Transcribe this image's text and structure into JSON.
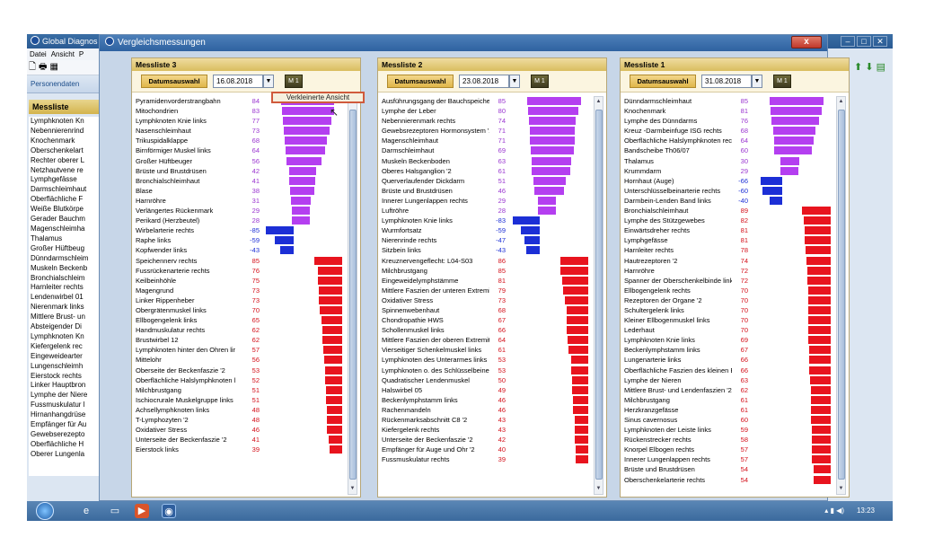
{
  "bg_app": {
    "title": "Global Diagnos",
    "menu": [
      "Datei",
      "Ansicht",
      "P"
    ],
    "personendaten": "Personendaten",
    "messliste": "Messliste",
    "list": [
      "Lymphknoten Kn",
      "Nebennierenrind",
      "Knochenmark",
      "Oberschenkelart",
      "Rechter oberer L",
      "Netzhautvene re",
      "Lymphgefässe",
      "Darmschleimhaut",
      "Oberflächliche F",
      "Weiße Blutkörpe",
      "Gerader Bauchm",
      "Magenschleimha",
      "Thalamus",
      "Großer Hüftbeug",
      "Dünndarmschleim",
      "Muskeln Beckenb",
      "Bronchialschleim",
      "Harnleiter rechts",
      "Lendenwirbel 01",
      "Nierenmark links",
      "Mittlere Brust- un",
      "Absteigender Di",
      "Lymphknoten Kn",
      "Kiefergelenk rec",
      "Eingeweidearter",
      "Lungenschleimh",
      "Eierstock rechts",
      "Linker Hauptbron",
      "Lymphe der Niere",
      "Fussmuskulatur l",
      "Hirnanhangdrüse",
      "Empfänger für Au",
      "Gewebserezepto",
      "Oberflächliche H",
      "Oberer Lungenla"
    ]
  },
  "dialog": {
    "title": "Vergleichsmessungen",
    "close": "x",
    "verkleinerte": "Verkleinerte Ansicht"
  },
  "colors": {
    "purple": "#b43ff0",
    "blue": "#1c2fd6",
    "red": "#e8141e"
  },
  "panels": [
    {
      "title": "Messliste 3",
      "date_label": "Datumsauswahl",
      "date": "16.08.2018",
      "m": "M 1",
      "rows": [
        [
          "Pyramidenvorderstrangbahn",
          84,
          "purple"
        ],
        [
          "Mitochondrien",
          83,
          "purple"
        ],
        [
          "Lymphknoten Knie links",
          77,
          "purple"
        ],
        [
          "Nasenschleimhaut",
          73,
          "purple"
        ],
        [
          "Trikuspidalklappe",
          68,
          "purple"
        ],
        [
          "Birnförmiger Muskel links",
          64,
          "purple"
        ],
        [
          "Großer Hüftbeuger",
          56,
          "purple"
        ],
        [
          "Brüste und Brustdrüsen",
          42,
          "purple"
        ],
        [
          "Bronchialschleimhaut",
          41,
          "purple"
        ],
        [
          "Blase",
          38,
          "purple"
        ],
        [
          "Harnröhre",
          31,
          "purple"
        ],
        [
          "Verlängertes Rückenmark",
          29,
          "purple"
        ],
        [
          "Perikard (Herzbeutel)",
          28,
          "purple"
        ],
        [
          "Wirbelarterie rechts",
          -85,
          "blue"
        ],
        [
          "Raphe links",
          -59,
          "blue"
        ],
        [
          "Kopfwender links",
          -43,
          "blue"
        ],
        [
          "Speichennerv rechts",
          85,
          "red"
        ],
        [
          "Fussrückenarterie rechts",
          76,
          "red"
        ],
        [
          "Keilbeinhöhle",
          75,
          "red"
        ],
        [
          "Magengrund",
          73,
          "red"
        ],
        [
          "Linker Rippenheber",
          73,
          "red"
        ],
        [
          "Obergrätenmuskel links",
          70,
          "red"
        ],
        [
          "Ellbogengelenk links",
          65,
          "red"
        ],
        [
          "Handmuskulatur rechts",
          62,
          "red"
        ],
        [
          "Brustwirbel 12",
          62,
          "red"
        ],
        [
          "Lymphknoten hinter den Ohren lir",
          57,
          "red"
        ],
        [
          "Mittelohr",
          56,
          "red"
        ],
        [
          "Oberseite der Beckenfaszie '2",
          53,
          "red"
        ],
        [
          "Oberflächliche Halslymphknoten l",
          52,
          "red"
        ],
        [
          "Milchbrustgang",
          51,
          "red"
        ],
        [
          "Ischiocrurale Muskelgruppe links",
          51,
          "red"
        ],
        [
          "Achsellymphknoten links",
          48,
          "red"
        ],
        [
          "T-Lymphozyten '2",
          48,
          "red"
        ],
        [
          "Oxidativer Stress",
          46,
          "red"
        ],
        [
          "Unterseite der Beckenfaszie '2",
          41,
          "red"
        ],
        [
          "Eierstock links",
          39,
          "red"
        ]
      ]
    },
    {
      "title": "Messliste 2",
      "date_label": "Datumsauswahl",
      "date": "23.08.2018",
      "m": "M 1",
      "rows": [
        [
          "Ausführungsgang der Bauchspeicheldr",
          85,
          "purple"
        ],
        [
          "Lymphe der Leber",
          80,
          "purple"
        ],
        [
          "Nebennierenmark rechts",
          74,
          "purple"
        ],
        [
          "Gewebsrezeptoren Hormonsystem '2",
          71,
          "purple"
        ],
        [
          "Magenschleimhaut",
          71,
          "purple"
        ],
        [
          "Darmschleimhaut",
          69,
          "purple"
        ],
        [
          "Muskeln Beckenboden",
          63,
          "purple"
        ],
        [
          "Oberes Halsganglion '2",
          61,
          "purple"
        ],
        [
          "Querverlaufender Dickdarm",
          51,
          "purple"
        ],
        [
          "Brüste und Brustdrüsen",
          46,
          "purple"
        ],
        [
          "Innerer Lungenlappen rechts",
          29,
          "purple"
        ],
        [
          "Luftröhre",
          28,
          "purple"
        ],
        [
          "Lymphknoten Knie links",
          -83,
          "blue"
        ],
        [
          "Wurmfortsatz",
          -59,
          "blue"
        ],
        [
          "Nierenrinde rechts",
          -47,
          "blue"
        ],
        [
          "Sitzbein links",
          -43,
          "blue"
        ],
        [
          "Kreuznervengeflecht: L04-S03",
          86,
          "red"
        ],
        [
          "Milchbrustgang",
          85,
          "red"
        ],
        [
          "Eingeweidelymphstämme",
          81,
          "red"
        ],
        [
          "Mittlere Faszien der unteren Extremität '",
          79,
          "red"
        ],
        [
          "Oxidativer Stress",
          73,
          "red"
        ],
        [
          "Spinnenwebenhaut",
          68,
          "red"
        ],
        [
          "Chondropathie HWS",
          67,
          "red"
        ],
        [
          "Schollenmuskel links",
          66,
          "red"
        ],
        [
          "Mittlere Faszien der oberen Extremität '2",
          64,
          "red"
        ],
        [
          "Vierseitiger Schenkelmuskel links",
          61,
          "red"
        ],
        [
          "Lymphknoten des Unterarmes links",
          53,
          "red"
        ],
        [
          "Lymphknoten o. des Schlüsselbeines lin",
          53,
          "red"
        ],
        [
          "Quadratischer Lendenmuskel",
          50,
          "red"
        ],
        [
          "Halswirbel 05",
          49,
          "red"
        ],
        [
          "Beckenlymphstamm links",
          46,
          "red"
        ],
        [
          "Rachenmandeln",
          46,
          "red"
        ],
        [
          "Rückenmarksabschnitt C8 '2",
          43,
          "red"
        ],
        [
          "Kiefergelenk rechts",
          43,
          "red"
        ],
        [
          "Unterseite der Beckenfaszie '2",
          42,
          "red"
        ],
        [
          "Empfänger für Auge und Ohr '2",
          40,
          "red"
        ],
        [
          "Fussmuskulatur rechts",
          39,
          "red"
        ]
      ]
    },
    {
      "title": "Messliste 1",
      "date_label": "Datumsauswahl",
      "date": "31.08.2018",
      "m": "M 1",
      "rows": [
        [
          "Dünndarmschleimhaut",
          85,
          "purple"
        ],
        [
          "Knochenmark",
          81,
          "purple"
        ],
        [
          "Lymphe des Dünndarms",
          76,
          "purple"
        ],
        [
          "Kreuz -Darmbeinfuge ISG rechts",
          68,
          "purple"
        ],
        [
          "Oberflächliche Halslymphknoten rechts",
          64,
          "purple"
        ],
        [
          "Bandscheibe Th06/07",
          60,
          "purple"
        ],
        [
          "Thalamus",
          30,
          "purple"
        ],
        [
          "Krummdarm",
          29,
          "purple"
        ],
        [
          "Hornhaut (Auge)",
          -66,
          "blue"
        ],
        [
          "Unterschlüsselbeinarterie rechts",
          -60,
          "blue"
        ],
        [
          "Darmbein-Lenden Band links",
          -40,
          "blue"
        ],
        [
          "Bronchialschleimhaut",
          89,
          "red"
        ],
        [
          "Lymphe des Stützgewebes",
          82,
          "red"
        ],
        [
          "Einwärtsdreher rechts",
          81,
          "red"
        ],
        [
          "Lymphgefässe",
          81,
          "red"
        ],
        [
          "Harnleiter rechts",
          78,
          "red"
        ],
        [
          "Hautrezeptoren '2",
          74,
          "red"
        ],
        [
          "Harnröhre",
          72,
          "red"
        ],
        [
          "Spanner der Oberschenkelbinde links",
          72,
          "red"
        ],
        [
          "Ellbogengelenk rechts",
          70,
          "red"
        ],
        [
          "Rezeptoren der Organe '2",
          70,
          "red"
        ],
        [
          "Schultergelenk links",
          70,
          "red"
        ],
        [
          "Kleiner Ellbogenmuskel links",
          70,
          "red"
        ],
        [
          "Lederhaut",
          70,
          "red"
        ],
        [
          "Lymphknoten Knie links",
          69,
          "red"
        ],
        [
          "Beckenlymphstamm links",
          67,
          "red"
        ],
        [
          "Lungenarterie links",
          66,
          "red"
        ],
        [
          "Oberflächliche Faszien des kleinen Bec",
          66,
          "red"
        ],
        [
          "Lymphe der Nieren",
          63,
          "red"
        ],
        [
          "Mittlere Brust- und Lendenfaszien '2",
          62,
          "red"
        ],
        [
          "Milchbrustgang",
          61,
          "red"
        ],
        [
          "Herzkranzgefässe",
          61,
          "red"
        ],
        [
          "Sinus cavernosus",
          60,
          "red"
        ],
        [
          "Lymphknoten der Leiste links",
          59,
          "red"
        ],
        [
          "Rückenstrecker rechts",
          58,
          "red"
        ],
        [
          "Knorpel Elbogen rechts",
          57,
          "red"
        ],
        [
          "Innerer Lungenlappen rechts",
          57,
          "red"
        ],
        [
          "Brüste und Brustdrüsen",
          54,
          "red"
        ],
        [
          "Oberschenkelarterie rechts",
          54,
          "red"
        ]
      ]
    }
  ],
  "taskbar": {
    "clock": "13:23"
  }
}
